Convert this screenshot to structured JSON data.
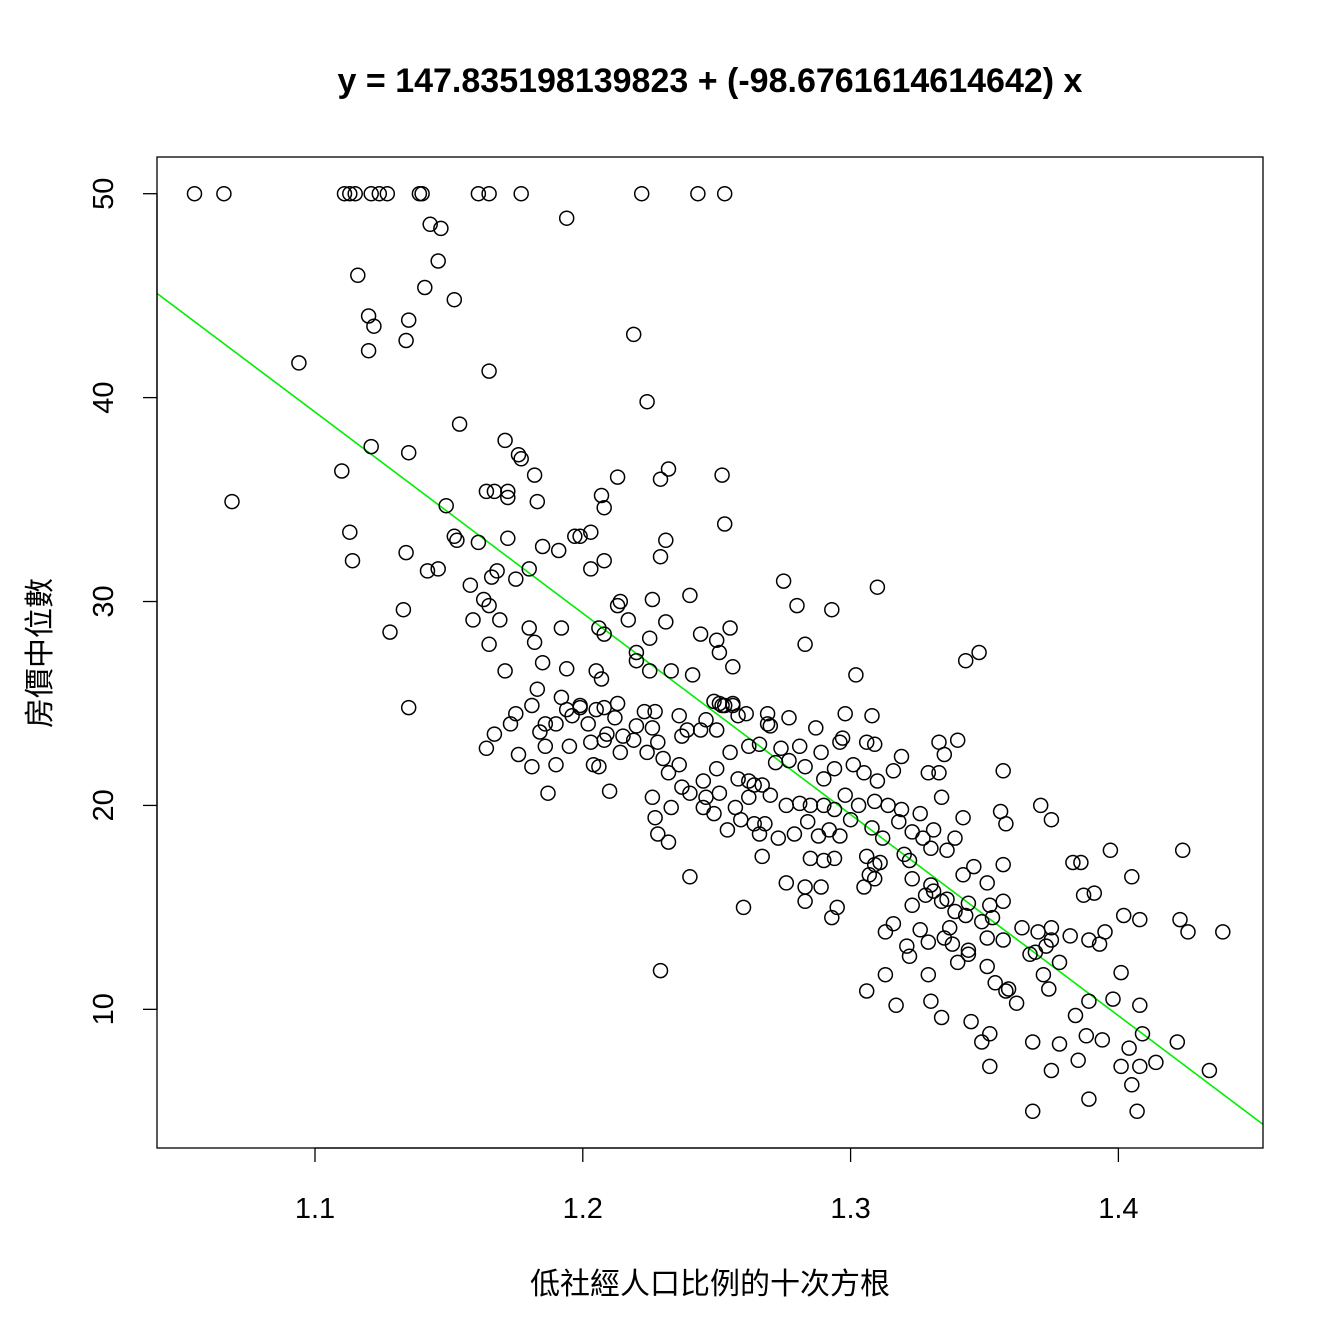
{
  "chart_data": {
    "type": "scatter",
    "title": "y = 147.835198139823 + (-98.6761614614642) x",
    "xlabel": "低社經人口比例的十次方根",
    "ylabel": "房價中位數",
    "xlim": [
      1.041,
      1.454
    ],
    "ylim": [
      3.2,
      51.8
    ],
    "x_ticks": [
      1.1,
      1.2,
      1.3,
      1.4
    ],
    "y_ticks": [
      10,
      20,
      30,
      40,
      50
    ],
    "x_tick_labels": [
      "1.1",
      "1.2",
      "1.3",
      "1.4"
    ],
    "y_tick_labels": [
      "10",
      "20",
      "30",
      "40",
      "50"
    ],
    "grid": false,
    "legend": "none",
    "point_color": "#000000",
    "line_color": "#00ee00",
    "regression": {
      "intercept": 147.835198139823,
      "slope": -98.6761614614642
    },
    "points": [
      [
        1.055,
        50.0
      ],
      [
        1.066,
        50.0
      ],
      [
        1.111,
        50.0
      ],
      [
        1.113,
        50.0
      ],
      [
        1.115,
        50.0
      ],
      [
        1.121,
        50.0
      ],
      [
        1.124,
        50.0
      ],
      [
        1.127,
        50.0
      ],
      [
        1.139,
        50.0
      ],
      [
        1.14,
        50.0
      ],
      [
        1.161,
        50.0
      ],
      [
        1.165,
        50.0
      ],
      [
        1.177,
        50.0
      ],
      [
        1.222,
        50.0
      ],
      [
        1.243,
        50.0
      ],
      [
        1.253,
        50.0
      ],
      [
        1.194,
        48.8
      ],
      [
        1.143,
        48.5
      ],
      [
        1.147,
        48.3
      ],
      [
        1.146,
        46.7
      ],
      [
        1.116,
        46.0
      ],
      [
        1.152,
        44.8
      ],
      [
        1.141,
        45.4
      ],
      [
        1.12,
        44.0
      ],
      [
        1.122,
        43.5
      ],
      [
        1.135,
        43.8
      ],
      [
        1.134,
        42.8
      ],
      [
        1.12,
        42.3
      ],
      [
        1.219,
        43.1
      ],
      [
        1.094,
        41.7
      ],
      [
        1.165,
        41.3
      ],
      [
        1.224,
        39.8
      ],
      [
        1.154,
        38.7
      ],
      [
        1.171,
        37.9
      ],
      [
        1.176,
        37.2
      ],
      [
        1.121,
        37.6
      ],
      [
        1.135,
        37.3
      ],
      [
        1.177,
        37.0
      ],
      [
        1.11,
        36.4
      ],
      [
        1.232,
        36.5
      ],
      [
        1.252,
        36.2
      ],
      [
        1.182,
        36.2
      ],
      [
        1.213,
        36.1
      ],
      [
        1.229,
        36.0
      ],
      [
        1.069,
        34.9
      ],
      [
        1.167,
        35.4
      ],
      [
        1.172,
        35.4
      ],
      [
        1.164,
        35.4
      ],
      [
        1.172,
        35.1
      ],
      [
        1.207,
        35.2
      ],
      [
        1.183,
        34.9
      ],
      [
        1.149,
        34.7
      ],
      [
        1.208,
        34.6
      ],
      [
        1.253,
        33.8
      ],
      [
        1.113,
        33.4
      ],
      [
        1.152,
        33.2
      ],
      [
        1.203,
        33.4
      ],
      [
        1.197,
        33.2
      ],
      [
        1.199,
        33.2
      ],
      [
        1.172,
        33.1
      ],
      [
        1.153,
        33.0
      ],
      [
        1.161,
        32.9
      ],
      [
        1.231,
        33.0
      ],
      [
        1.185,
        32.7
      ],
      [
        1.191,
        32.5
      ],
      [
        1.134,
        32.4
      ],
      [
        1.229,
        32.2
      ],
      [
        1.208,
        32.0
      ],
      [
        1.114,
        32.0
      ],
      [
        1.18,
        31.6
      ],
      [
        1.142,
        31.5
      ],
      [
        1.146,
        31.6
      ],
      [
        1.203,
        31.6
      ],
      [
        1.168,
        31.5
      ],
      [
        1.166,
        31.2
      ],
      [
        1.175,
        31.1
      ],
      [
        1.275,
        31.0
      ],
      [
        1.31,
        30.7
      ],
      [
        1.158,
        30.8
      ],
      [
        1.24,
        30.3
      ],
      [
        1.163,
        30.1
      ],
      [
        1.214,
        30.0
      ],
      [
        1.226,
        30.1
      ],
      [
        1.165,
        29.8
      ],
      [
        1.293,
        29.6
      ],
      [
        1.28,
        29.8
      ],
      [
        1.213,
        29.8
      ],
      [
        1.133,
        29.6
      ],
      [
        1.159,
        29.1
      ],
      [
        1.231,
        29.0
      ],
      [
        1.217,
        29.1
      ],
      [
        1.192,
        28.7
      ],
      [
        1.18,
        28.7
      ],
      [
        1.169,
        29.1
      ],
      [
        1.128,
        28.5
      ],
      [
        1.206,
        28.7
      ],
      [
        1.244,
        28.4
      ],
      [
        1.255,
        28.7
      ],
      [
        1.208,
        28.4
      ],
      [
        1.225,
        28.2
      ],
      [
        1.25,
        28.1
      ],
      [
        1.283,
        27.9
      ],
      [
        1.165,
        27.9
      ],
      [
        1.182,
        28.0
      ],
      [
        1.343,
        27.1
      ],
      [
        1.348,
        27.5
      ],
      [
        1.251,
        27.5
      ],
      [
        1.22,
        27.5
      ],
      [
        1.256,
        26.8
      ],
      [
        1.22,
        27.1
      ],
      [
        1.225,
        26.6
      ],
      [
        1.194,
        26.7
      ],
      [
        1.205,
        26.6
      ],
      [
        1.171,
        26.6
      ],
      [
        1.185,
        27.0
      ],
      [
        1.302,
        26.4
      ],
      [
        1.241,
        26.4
      ],
      [
        1.256,
        25.0
      ],
      [
        1.251,
        25.0
      ],
      [
        1.207,
        26.2
      ],
      [
        1.233,
        26.6
      ],
      [
        1.183,
        25.7
      ],
      [
        1.249,
        25.1
      ],
      [
        1.253,
        24.9
      ],
      [
        1.213,
        25.0
      ],
      [
        1.192,
        25.3
      ],
      [
        1.252,
        24.9
      ],
      [
        1.194,
        24.7
      ],
      [
        1.199,
        24.8
      ],
      [
        1.208,
        24.8
      ],
      [
        1.199,
        24.9
      ],
      [
        1.227,
        24.6
      ],
      [
        1.205,
        24.7
      ],
      [
        1.135,
        24.8
      ],
      [
        1.19,
        24.0
      ],
      [
        1.181,
        24.9
      ],
      [
        1.175,
        24.5
      ],
      [
        1.196,
        24.4
      ],
      [
        1.212,
        24.3
      ],
      [
        1.223,
        24.6
      ],
      [
        1.236,
        24.4
      ],
      [
        1.261,
        24.5
      ],
      [
        1.256,
        24.9
      ],
      [
        1.258,
        24.4
      ],
      [
        1.269,
        24.5
      ],
      [
        1.277,
        24.3
      ],
      [
        1.287,
        23.8
      ],
      [
        1.298,
        24.5
      ],
      [
        1.308,
        24.4
      ],
      [
        1.269,
        24.0
      ],
      [
        1.27,
        23.9
      ],
      [
        1.25,
        23.7
      ],
      [
        1.246,
        24.2
      ],
      [
        1.244,
        23.7
      ],
      [
        1.226,
        23.8
      ],
      [
        1.22,
        23.9
      ],
      [
        1.215,
        23.4
      ],
      [
        1.209,
        23.5
      ],
      [
        1.202,
        24.0
      ],
      [
        1.186,
        24.0
      ],
      [
        1.173,
        24.0
      ],
      [
        1.184,
        23.6
      ],
      [
        1.167,
        23.5
      ],
      [
        1.164,
        22.8
      ],
      [
        1.176,
        22.5
      ],
      [
        1.186,
        22.9
      ],
      [
        1.195,
        22.9
      ],
      [
        1.208,
        23.2
      ],
      [
        1.203,
        23.1
      ],
      [
        1.219,
        23.2
      ],
      [
        1.228,
        23.1
      ],
      [
        1.237,
        23.4
      ],
      [
        1.239,
        23.7
      ],
      [
        1.255,
        22.6
      ],
      [
        1.262,
        22.9
      ],
      [
        1.266,
        23.0
      ],
      [
        1.274,
        22.8
      ],
      [
        1.281,
        22.9
      ],
      [
        1.289,
        22.6
      ],
      [
        1.296,
        23.1
      ],
      [
        1.297,
        23.3
      ],
      [
        1.306,
        23.1
      ],
      [
        1.309,
        23.0
      ],
      [
        1.319,
        22.4
      ],
      [
        1.333,
        23.1
      ],
      [
        1.34,
        23.2
      ],
      [
        1.335,
        22.5
      ],
      [
        1.23,
        22.3
      ],
      [
        1.224,
        22.6
      ],
      [
        1.214,
        22.6
      ],
      [
        1.204,
        22.0
      ],
      [
        1.19,
        22.0
      ],
      [
        1.181,
        21.9
      ],
      [
        1.206,
        21.9
      ],
      [
        1.232,
        21.6
      ],
      [
        1.236,
        22.0
      ],
      [
        1.245,
        21.2
      ],
      [
        1.25,
        21.8
      ],
      [
        1.258,
        21.3
      ],
      [
        1.262,
        21.2
      ],
      [
        1.267,
        21.0
      ],
      [
        1.272,
        22.1
      ],
      [
        1.277,
        22.2
      ],
      [
        1.283,
        21.9
      ],
      [
        1.29,
        21.3
      ],
      [
        1.294,
        21.8
      ],
      [
        1.301,
        22.0
      ],
      [
        1.305,
        21.6
      ],
      [
        1.31,
        21.2
      ],
      [
        1.316,
        21.7
      ],
      [
        1.329,
        21.6
      ],
      [
        1.333,
        21.6
      ],
      [
        1.357,
        21.7
      ],
      [
        1.187,
        20.6
      ],
      [
        1.21,
        20.7
      ],
      [
        1.226,
        20.4
      ],
      [
        1.237,
        20.9
      ],
      [
        1.24,
        20.6
      ],
      [
        1.246,
        20.4
      ],
      [
        1.251,
        20.6
      ],
      [
        1.257,
        19.9
      ],
      [
        1.262,
        20.4
      ],
      [
        1.264,
        21.0
      ],
      [
        1.27,
        20.5
      ],
      [
        1.276,
        20.0
      ],
      [
        1.281,
        20.1
      ],
      [
        1.285,
        20.0
      ],
      [
        1.29,
        20.0
      ],
      [
        1.294,
        19.8
      ],
      [
        1.298,
        20.5
      ],
      [
        1.303,
        20.0
      ],
      [
        1.309,
        20.2
      ],
      [
        1.314,
        20.0
      ],
      [
        1.319,
        19.8
      ],
      [
        1.326,
        19.6
      ],
      [
        1.331,
        18.8
      ],
      [
        1.334,
        20.4
      ],
      [
        1.342,
        19.4
      ],
      [
        1.356,
        19.7
      ],
      [
        1.371,
        20.0
      ],
      [
        1.375,
        19.3
      ],
      [
        1.227,
        19.4
      ],
      [
        1.233,
        19.9
      ],
      [
        1.245,
        19.9
      ],
      [
        1.249,
        19.6
      ],
      [
        1.254,
        18.8
      ],
      [
        1.259,
        19.3
      ],
      [
        1.264,
        19.1
      ],
      [
        1.268,
        19.1
      ],
      [
        1.273,
        18.4
      ],
      [
        1.279,
        18.6
      ],
      [
        1.284,
        19.2
      ],
      [
        1.288,
        18.5
      ],
      [
        1.292,
        18.8
      ],
      [
        1.296,
        18.5
      ],
      [
        1.3,
        19.3
      ],
      [
        1.308,
        18.9
      ],
      [
        1.312,
        18.4
      ],
      [
        1.318,
        19.2
      ],
      [
        1.323,
        18.7
      ],
      [
        1.327,
        18.4
      ],
      [
        1.33,
        17.9
      ],
      [
        1.336,
        17.8
      ],
      [
        1.339,
        18.4
      ],
      [
        1.346,
        17.0
      ],
      [
        1.357,
        17.1
      ],
      [
        1.358,
        19.1
      ],
      [
        1.228,
        18.6
      ],
      [
        1.232,
        18.2
      ],
      [
        1.266,
        18.6
      ],
      [
        1.267,
        17.5
      ],
      [
        1.285,
        17.4
      ],
      [
        1.29,
        17.3
      ],
      [
        1.294,
        17.4
      ],
      [
        1.306,
        17.5
      ],
      [
        1.309,
        17.1
      ],
      [
        1.311,
        17.2
      ],
      [
        1.32,
        17.6
      ],
      [
        1.322,
        17.3
      ],
      [
        1.342,
        16.6
      ],
      [
        1.351,
        16.2
      ],
      [
        1.386,
        17.2
      ],
      [
        1.383,
        17.2
      ],
      [
        1.397,
        17.8
      ],
      [
        1.424,
        17.8
      ],
      [
        1.24,
        16.5
      ],
      [
        1.276,
        16.2
      ],
      [
        1.283,
        16.0
      ],
      [
        1.289,
        16.0
      ],
      [
        1.307,
        16.6
      ],
      [
        1.309,
        16.4
      ],
      [
        1.323,
        16.4
      ],
      [
        1.33,
        16.1
      ],
      [
        1.331,
        15.8
      ],
      [
        1.336,
        15.4
      ],
      [
        1.344,
        15.2
      ],
      [
        1.352,
        15.1
      ],
      [
        1.357,
        15.3
      ],
      [
        1.387,
        15.6
      ],
      [
        1.391,
        15.7
      ],
      [
        1.405,
        16.5
      ],
      [
        1.283,
        15.3
      ],
      [
        1.295,
        15.0
      ],
      [
        1.323,
        15.1
      ],
      [
        1.328,
        15.6
      ],
      [
        1.334,
        15.3
      ],
      [
        1.339,
        14.8
      ],
      [
        1.343,
        14.6
      ],
      [
        1.349,
        14.3
      ],
      [
        1.353,
        14.5
      ],
      [
        1.364,
        14.0
      ],
      [
        1.375,
        14.0
      ],
      [
        1.37,
        13.8
      ],
      [
        1.389,
        13.4
      ],
      [
        1.395,
        13.8
      ],
      [
        1.402,
        14.6
      ],
      [
        1.408,
        14.4
      ],
      [
        1.423,
        14.4
      ],
      [
        1.426,
        13.8
      ],
      [
        1.439,
        13.8
      ],
      [
        1.26,
        15.0
      ],
      [
        1.293,
        14.5
      ],
      [
        1.313,
        13.8
      ],
      [
        1.321,
        13.1
      ],
      [
        1.326,
        13.9
      ],
      [
        1.329,
        13.3
      ],
      [
        1.335,
        13.5
      ],
      [
        1.338,
        13.2
      ],
      [
        1.344,
        12.7
      ],
      [
        1.351,
        13.5
      ],
      [
        1.357,
        13.4
      ],
      [
        1.367,
        12.7
      ],
      [
        1.373,
        13.1
      ],
      [
        1.375,
        13.4
      ],
      [
        1.393,
        13.2
      ],
      [
        1.229,
        11.9
      ],
      [
        1.306,
        10.9
      ],
      [
        1.313,
        11.7
      ],
      [
        1.317,
        10.2
      ],
      [
        1.329,
        11.7
      ],
      [
        1.33,
        10.4
      ],
      [
        1.34,
        12.3
      ],
      [
        1.351,
        12.1
      ],
      [
        1.354,
        11.3
      ],
      [
        1.359,
        11.0
      ],
      [
        1.362,
        10.3
      ],
      [
        1.372,
        11.7
      ],
      [
        1.374,
        11.0
      ],
      [
        1.378,
        12.3
      ],
      [
        1.384,
        9.7
      ],
      [
        1.389,
        10.4
      ],
      [
        1.398,
        10.5
      ],
      [
        1.401,
        11.8
      ],
      [
        1.408,
        10.2
      ],
      [
        1.334,
        9.6
      ],
      [
        1.345,
        9.4
      ],
      [
        1.352,
        8.8
      ],
      [
        1.368,
        8.4
      ],
      [
        1.378,
        8.3
      ],
      [
        1.388,
        8.7
      ],
      [
        1.394,
        8.5
      ],
      [
        1.404,
        8.1
      ],
      [
        1.409,
        8.8
      ],
      [
        1.422,
        8.4
      ],
      [
        1.349,
        8.4
      ],
      [
        1.385,
        7.5
      ],
      [
        1.401,
        7.2
      ],
      [
        1.405,
        6.3
      ],
      [
        1.414,
        7.4
      ],
      [
        1.434,
        7.0
      ],
      [
        1.375,
        7.0
      ],
      [
        1.408,
        7.2
      ],
      [
        1.352,
        7.2
      ],
      [
        1.368,
        5.0
      ],
      [
        1.389,
        5.6
      ],
      [
        1.407,
        5.0
      ],
      [
        1.358,
        10.9
      ],
      [
        1.369,
        12.8
      ],
      [
        1.382,
        13.6
      ],
      [
        1.322,
        12.6
      ],
      [
        1.316,
        14.2
      ],
      [
        1.337,
        14.0
      ],
      [
        1.344,
        12.9
      ],
      [
        1.305,
        16.0
      ]
    ]
  }
}
